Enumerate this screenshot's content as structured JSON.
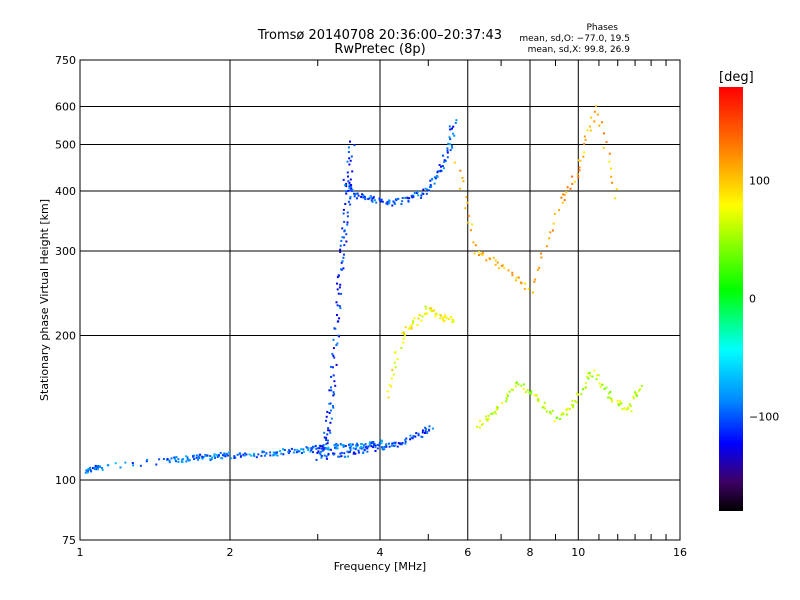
{
  "header": {
    "line1": "Tromsø 20140708 20:36:00–20:37:43",
    "line2": "RwPretec (8p)"
  },
  "stats": {
    "heading": "Phases",
    "o_line": "mean, sd,O: −77.0, 19.5",
    "x_line": "mean, sd,X:  99.8, 26.9"
  },
  "colorbar": {
    "unit": "[deg]",
    "range": [
      -180,
      180
    ],
    "ticks": [
      "100",
      "0",
      "−100"
    ],
    "tick_values": [
      100,
      0,
      -100
    ]
  },
  "chart_data": {
    "type": "scatter",
    "title": "Tromsø 20140708 20:36:00–20:37:43",
    "subtitle": "RwPretec (8p)",
    "xlabel": "Frequency [MHz]",
    "ylabel": "Stationary phase Virtual Height [km]",
    "xscale": "log",
    "yscale": "log",
    "xlim": [
      1,
      16
    ],
    "ylim": [
      75,
      750
    ],
    "xticks": [
      1,
      2,
      4,
      6,
      8,
      10,
      16
    ],
    "xtick_labels": [
      "1",
      "2",
      "4",
      "6",
      "8",
      "10",
      "16"
    ],
    "yticks": [
      75,
      100,
      200,
      300,
      400,
      500,
      600,
      750
    ],
    "ytick_labels": [
      "75",
      "100",
      "200",
      "300",
      "400",
      "500",
      "600",
      "750"
    ],
    "grid": true,
    "color_encoding": "phase",
    "traces": [
      {
        "x": [
          1.03,
          1.06,
          1.1,
          1.5,
          1.6,
          1.7,
          1.8,
          1.9,
          2.0,
          2.2,
          2.4,
          2.6,
          2.8,
          3.0,
          3.2,
          3.4,
          3.6,
          3.8,
          4.0
        ],
        "y": [
          105,
          106,
          107,
          110,
          111,
          112,
          112,
          113,
          113,
          113,
          114,
          115,
          116,
          117,
          118,
          118,
          118,
          119,
          120
        ],
        "phase": -90
      },
      {
        "x": [
          3.0,
          3.1,
          3.15,
          3.2,
          3.25,
          3.3,
          3.35,
          3.4,
          3.45,
          3.5
        ],
        "y": [
          115,
          120,
          135,
          160,
          200,
          250,
          300,
          350,
          420,
          510
        ],
        "phase": -110
      },
      {
        "x": [
          3.4,
          3.5,
          3.7,
          3.9,
          4.2,
          4.5,
          4.8,
          5.1,
          5.3,
          5.5,
          5.6
        ],
        "y": [
          420,
          400,
          390,
          385,
          380,
          385,
          395,
          420,
          450,
          500,
          570
        ],
        "phase": -100
      },
      {
        "x": [
          3.0,
          3.3,
          3.6,
          3.9,
          4.2,
          4.5,
          4.8,
          5.1
        ],
        "y": [
          112,
          113,
          115,
          117,
          118,
          121,
          125,
          130
        ],
        "phase": -105
      },
      {
        "x": [
          4.1,
          4.4,
          4.7,
          5.0,
          5.3,
          5.6
        ],
        "y": [
          150,
          200,
          215,
          230,
          220,
          215
        ],
        "phase": 80
      },
      {
        "x": [
          6.3,
          6.8,
          7.5,
          8.2,
          9.0,
          9.8,
          10.6,
          11.5,
          12.5,
          13.5
        ],
        "y": [
          130,
          140,
          160,
          150,
          135,
          145,
          170,
          150,
          140,
          160
        ],
        "phase": 60
      },
      {
        "x": [
          5.7,
          6.2,
          7.0,
          8.0,
          9.2,
          10.0,
          10.8,
          12.0
        ],
        "y": [
          460,
          300,
          280,
          250,
          380,
          450,
          600,
          380
        ],
        "phase": 110
      }
    ]
  }
}
